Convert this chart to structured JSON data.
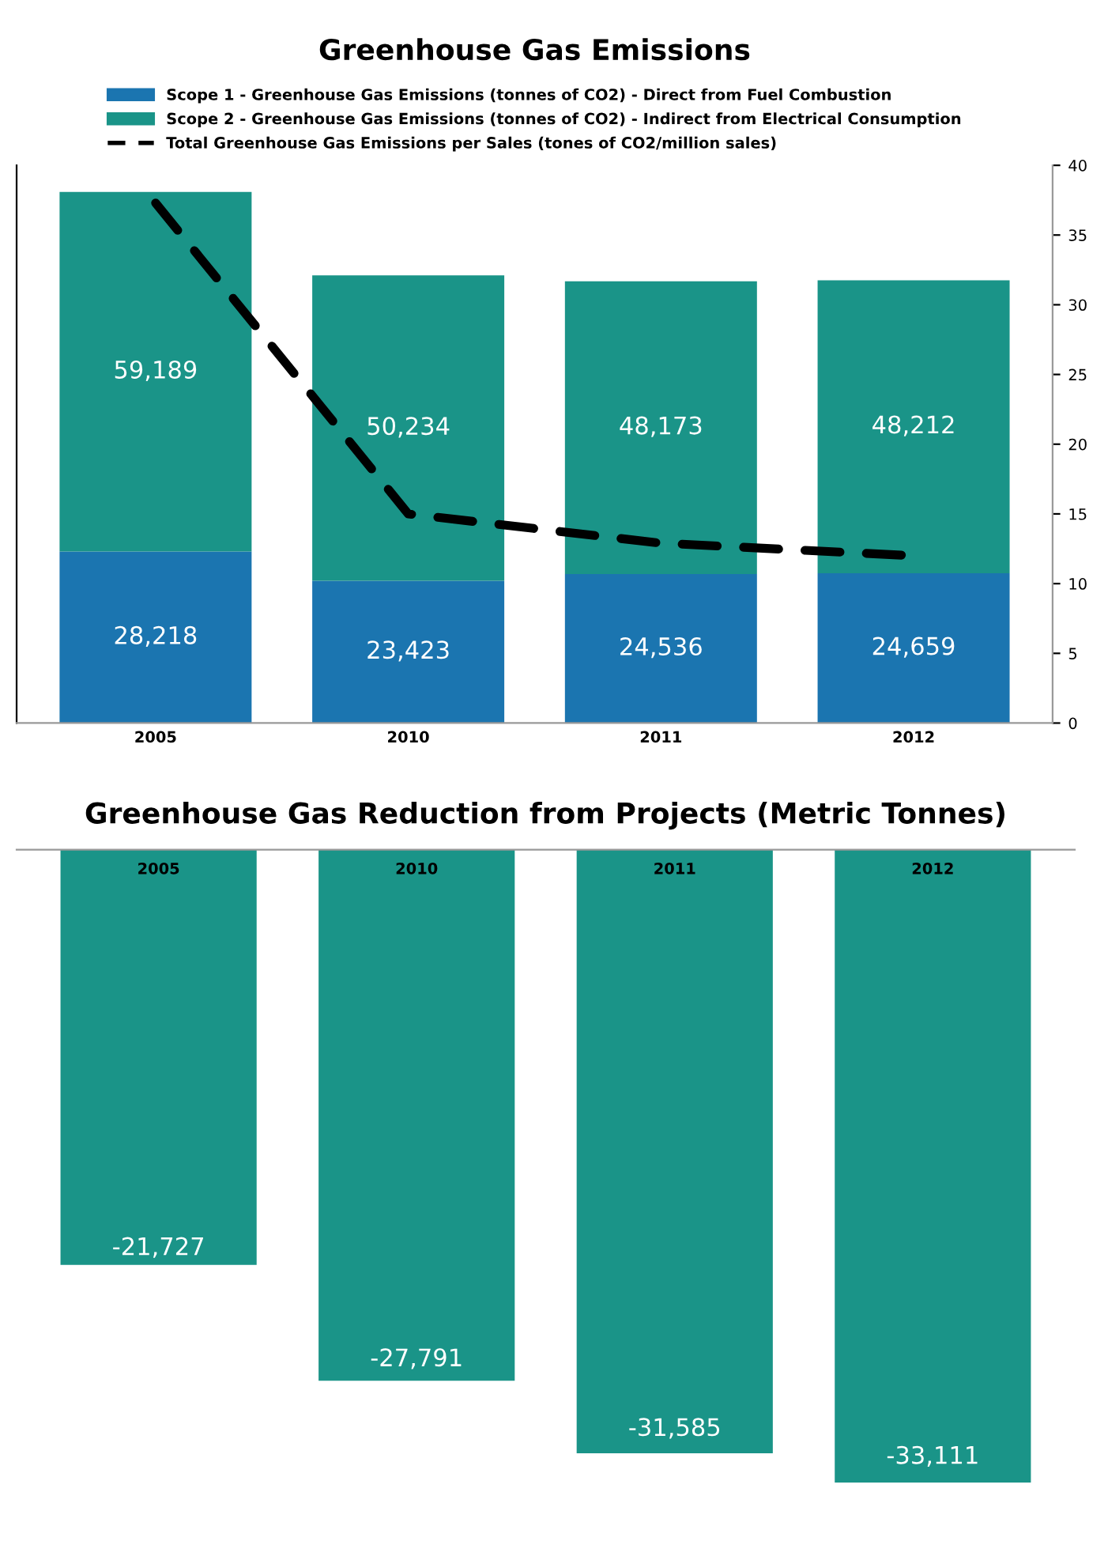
{
  "chart_data": [
    {
      "type": "bar",
      "title": "Greenhouse Gas Emissions",
      "stacked": true,
      "categories": [
        "2005",
        "2010",
        "2011",
        "2012"
      ],
      "series": [
        {
          "name": "Scope 1 - Greenhouse Gas Emissions (tonnes of CO2) - Direct from Fuel Combustion",
          "color": "#1b75b0",
          "values": [
            28218,
            23423,
            24536,
            24659
          ],
          "value_labels": [
            "28,218",
            "23,423",
            "24,536",
            "24,659"
          ]
        },
        {
          "name": "Scope 2 - Greenhouse Gas Emissions (tonnes of CO2) - Indirect from Electrical Consumption",
          "color": "#1a9488",
          "values": [
            59189,
            50234,
            48173,
            48212
          ],
          "value_labels": [
            "59,189",
            "50,234",
            "48,173",
            "48,212"
          ]
        },
        {
          "name": "Total Greenhouse Gas Emissions per Sales (tones of CO2/million sales)",
          "type": "line",
          "axis": "y2",
          "color": "#000000",
          "line_style": "dashed",
          "values": [
            37.3,
            15.0,
            12.9,
            12.0
          ]
        }
      ],
      "y2lim": [
        0,
        40
      ],
      "y2ticks": [
        0,
        5,
        10,
        15,
        20,
        25,
        30,
        35,
        40
      ],
      "legend": "top",
      "grid": false
    },
    {
      "type": "bar",
      "title": "Greenhouse Gas Reduction from Projects (Metric Tonnes)",
      "categories": [
        "2005",
        "2010",
        "2011",
        "2012"
      ],
      "series": [
        {
          "color": "#1a9488",
          "values": [
            -21727,
            -27791,
            -31585,
            -33111
          ],
          "value_labels": [
            "-21,727",
            "-27,791",
            "-31,585",
            "-33,111"
          ]
        }
      ],
      "tick_labels": "x",
      "grid": false
    }
  ]
}
